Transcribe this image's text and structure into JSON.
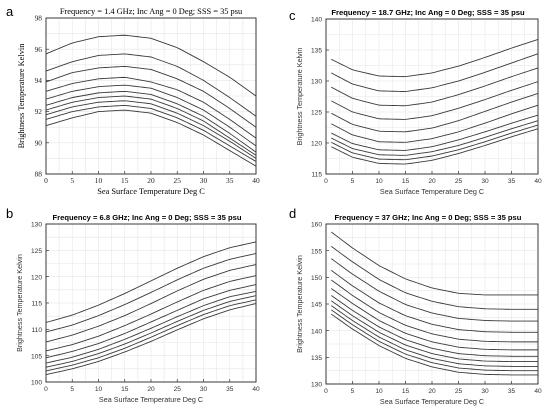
{
  "chart_data": [
    {
      "panel": "a",
      "style": "serif",
      "type": "line",
      "title": "Frequency = 1.4 GHz; Inc Ang = 0 Deg; SSS = 35 psu",
      "xlabel": "Sea Surface Temperature Deg C",
      "ylabel": "Brightness Temperature Kelvin",
      "xlim": [
        0,
        40
      ],
      "ylim": [
        88,
        98
      ],
      "xticks": [
        "0",
        "5",
        "10",
        "15",
        "20",
        "25",
        "30",
        "35",
        "40"
      ],
      "yticks": [
        "88",
        "90",
        "92",
        "94",
        "96",
        "98"
      ],
      "grid": true,
      "x": [
        0,
        5,
        10,
        15,
        20,
        25,
        30,
        35,
        40
      ],
      "series": [
        {
          "values": [
            95.7,
            96.4,
            96.8,
            96.9,
            96.7,
            96.1,
            95.2,
            94.2,
            93.0
          ]
        },
        {
          "values": [
            94.6,
            95.2,
            95.6,
            95.7,
            95.5,
            94.9,
            94.0,
            92.9,
            91.7
          ]
        },
        {
          "values": [
            93.9,
            94.5,
            94.8,
            94.9,
            94.7,
            94.1,
            93.3,
            92.2,
            91.0
          ]
        },
        {
          "values": [
            93.3,
            93.8,
            94.1,
            94.2,
            93.9,
            93.4,
            92.6,
            91.5,
            90.3
          ]
        },
        {
          "values": [
            92.8,
            93.3,
            93.6,
            93.7,
            93.5,
            92.9,
            92.1,
            91.0,
            89.8
          ]
        },
        {
          "values": [
            92.4,
            92.9,
            93.2,
            93.3,
            93.1,
            92.5,
            91.7,
            90.6,
            89.4
          ]
        },
        {
          "values": [
            92.1,
            92.6,
            92.9,
            93.0,
            92.8,
            92.2,
            91.4,
            90.3,
            89.2
          ]
        },
        {
          "values": [
            91.8,
            92.3,
            92.6,
            92.7,
            92.5,
            91.9,
            91.1,
            90.1,
            89.0
          ]
        },
        {
          "values": [
            91.5,
            92.0,
            92.3,
            92.4,
            92.2,
            91.6,
            90.8,
            89.8,
            88.8
          ]
        },
        {
          "values": [
            91.1,
            91.6,
            92.0,
            92.1,
            91.9,
            91.3,
            90.5,
            89.5,
            88.5
          ]
        }
      ]
    },
    {
      "panel": "b",
      "style": "sans",
      "type": "line",
      "title": "Frequency = 6.8 GHz;    Inc Ang = 0 Deg;    SSS =  35 psu",
      "xlabel": "Sea Surface Temperature   Deg C",
      "ylabel": "Brightness Temperature  Kelvin",
      "xlim": [
        0,
        40
      ],
      "ylim": [
        100,
        130
      ],
      "xticks": [
        "0",
        "5",
        "10",
        "15",
        "20",
        "25",
        "30",
        "35",
        "40"
      ],
      "yticks": [
        "100",
        "105",
        "110",
        "115",
        "120",
        "125",
        "130"
      ],
      "grid": true,
      "x": [
        0,
        5,
        10,
        15,
        20,
        25,
        30,
        35,
        40
      ],
      "series": [
        {
          "values": [
            111.3,
            112.7,
            114.6,
            116.8,
            119.2,
            121.6,
            123.8,
            125.5,
            126.6
          ]
        },
        {
          "values": [
            109.5,
            110.8,
            112.6,
            114.7,
            117.0,
            119.4,
            121.6,
            123.3,
            124.4
          ]
        },
        {
          "values": [
            107.6,
            108.9,
            110.6,
            112.6,
            114.9,
            117.3,
            119.5,
            121.2,
            122.3
          ]
        },
        {
          "values": [
            105.9,
            107.1,
            108.7,
            110.7,
            112.9,
            115.2,
            117.4,
            119.1,
            120.2
          ]
        },
        {
          "values": [
            104.6,
            105.8,
            107.3,
            109.2,
            111.4,
            113.6,
            115.8,
            117.4,
            118.5
          ]
        },
        {
          "values": [
            103.6,
            104.7,
            106.2,
            108.1,
            110.2,
            112.4,
            114.5,
            116.2,
            117.2
          ]
        },
        {
          "values": [
            102.8,
            103.9,
            105.4,
            107.2,
            109.3,
            111.5,
            113.6,
            115.3,
            116.4
          ]
        },
        {
          "values": [
            102.1,
            103.2,
            104.6,
            106.4,
            108.5,
            110.7,
            112.8,
            114.5,
            115.6
          ]
        },
        {
          "values": [
            101.4,
            102.5,
            103.9,
            105.7,
            107.7,
            109.9,
            112.0,
            113.7,
            114.9
          ]
        }
      ]
    },
    {
      "panel": "c",
      "style": "sans",
      "type": "line",
      "title": "Frequency = 18.7 GHz;    Inc Ang = 0 Deg;    SSS =  35 psu",
      "xlabel": "Sea Surface Temperature   Deg C",
      "ylabel": "Brightness Temperature  Kelvin",
      "xlim": [
        0,
        40
      ],
      "ylim": [
        115,
        140
      ],
      "xticks": [
        "0",
        "5",
        "10",
        "15",
        "20",
        "25",
        "30",
        "35",
        "40"
      ],
      "yticks": [
        "115",
        "120",
        "125",
        "130",
        "135",
        "140"
      ],
      "grid": true,
      "x": [
        1,
        5,
        10,
        15,
        20,
        25,
        30,
        35,
        40
      ],
      "series": [
        {
          "values": [
            133.5,
            131.8,
            130.8,
            130.7,
            131.3,
            132.4,
            133.8,
            135.3,
            136.7
          ]
        },
        {
          "values": [
            131.3,
            129.5,
            128.4,
            128.3,
            128.9,
            130.0,
            131.4,
            132.9,
            134.4
          ]
        },
        {
          "values": [
            129.0,
            127.2,
            126.1,
            126.0,
            126.6,
            127.8,
            129.2,
            130.7,
            132.1
          ]
        },
        {
          "values": [
            126.8,
            125.0,
            123.9,
            123.8,
            124.4,
            125.6,
            127.0,
            128.5,
            129.9
          ]
        },
        {
          "values": [
            124.8,
            123.0,
            121.9,
            121.8,
            122.4,
            123.6,
            125.1,
            126.6,
            128.0
          ]
        },
        {
          "values": [
            123.1,
            121.3,
            120.2,
            120.1,
            120.7,
            121.8,
            123.2,
            124.7,
            126.1
          ]
        },
        {
          "values": [
            121.6,
            119.9,
            118.9,
            118.8,
            119.4,
            120.5,
            121.8,
            123.2,
            124.5
          ]
        },
        {
          "values": [
            120.8,
            119.1,
            118.1,
            118.0,
            118.6,
            119.6,
            120.9,
            122.3,
            123.6
          ]
        },
        {
          "values": [
            120.1,
            118.4,
            117.4,
            117.3,
            117.9,
            118.9,
            120.2,
            121.6,
            122.9
          ]
        },
        {
          "values": [
            119.4,
            117.7,
            116.7,
            116.6,
            117.2,
            118.3,
            119.6,
            121.0,
            122.3
          ]
        }
      ]
    },
    {
      "panel": "d",
      "style": "sans",
      "type": "line",
      "title": "Frequency = 37 GHz;    Inc Ang = 0 Deg;    SSS =  35 psu",
      "xlabel": "Sea Surface Temperature   Deg C",
      "ylabel": "Brightness Temperature  Kelvin",
      "xlim": [
        0,
        40
      ],
      "ylim": [
        130,
        160
      ],
      "xticks": [
        "0",
        "5",
        "10",
        "15",
        "20",
        "25",
        "30",
        "35",
        "40"
      ],
      "yticks": [
        "130",
        "135",
        "140",
        "145",
        "150",
        "155",
        "160"
      ],
      "grid": true,
      "x": [
        1,
        5,
        10,
        15,
        20,
        25,
        30,
        35,
        40
      ],
      "series": [
        {
          "values": [
            158.5,
            155.5,
            152.2,
            149.7,
            148.0,
            147.0,
            146.7,
            146.7,
            146.7
          ]
        },
        {
          "values": [
            155.8,
            152.9,
            149.6,
            147.1,
            145.5,
            144.5,
            144.1,
            144.0,
            144.0
          ]
        },
        {
          "values": [
            153.5,
            150.6,
            147.4,
            144.9,
            143.3,
            142.3,
            141.9,
            141.8,
            141.8
          ]
        },
        {
          "values": [
            151.3,
            148.4,
            145.2,
            142.8,
            141.2,
            140.2,
            139.8,
            139.7,
            139.7
          ]
        },
        {
          "values": [
            149.5,
            146.6,
            143.4,
            141.0,
            139.4,
            138.4,
            138.0,
            137.9,
            137.9
          ]
        },
        {
          "values": [
            147.9,
            145.1,
            141.9,
            139.5,
            137.9,
            136.9,
            136.5,
            136.4,
            136.4
          ]
        },
        {
          "values": [
            146.6,
            143.8,
            140.7,
            138.3,
            136.7,
            135.7,
            135.3,
            135.2,
            135.2
          ]
        },
        {
          "values": [
            145.6,
            142.8,
            139.7,
            137.3,
            135.7,
            134.7,
            134.3,
            134.2,
            134.2
          ]
        },
        {
          "values": [
            144.7,
            141.9,
            138.8,
            136.4,
            134.8,
            133.8,
            133.4,
            133.3,
            133.3
          ]
        },
        {
          "values": [
            143.9,
            141.1,
            138.0,
            135.6,
            134.0,
            133.0,
            132.6,
            132.5,
            132.5
          ]
        },
        {
          "values": [
            143.1,
            140.3,
            137.2,
            134.8,
            133.2,
            132.2,
            131.8,
            131.7,
            131.7
          ]
        }
      ]
    }
  ]
}
